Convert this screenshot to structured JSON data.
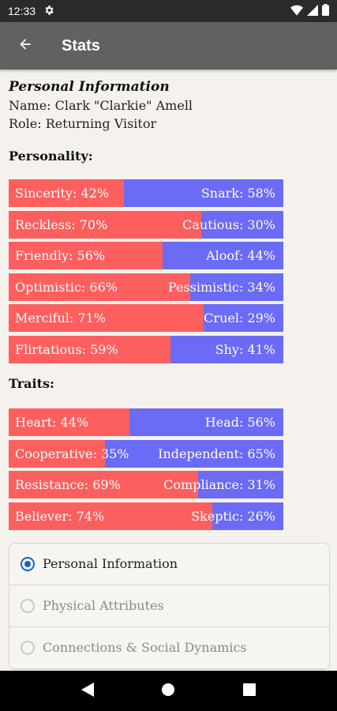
{
  "status_bar": {
    "time": "12:33",
    "icons": [
      "settings-gear",
      "wifi",
      "signal",
      "battery"
    ]
  },
  "app_bar": {
    "title": "Stats",
    "back_icon": "arrow-back"
  },
  "personal_info": {
    "title": "Personal Information",
    "name_line": "Name: Clark \"Clarkie\" Amell",
    "role_line": "Role: Returning Visitor"
  },
  "colors": {
    "left": "#fd5f5f",
    "right": "#6b6bf5",
    "selected": "#1565c0"
  },
  "personality": {
    "heading": "Personality:",
    "bars": [
      {
        "left": "Sincerity: 42%",
        "right": "Snark: 58%",
        "left_pct": 42
      },
      {
        "left": "Reckless: 70%",
        "right": "Cautious: 30%",
        "left_pct": 70
      },
      {
        "left": "Friendly: 56%",
        "right": "Aloof: 44%",
        "left_pct": 56
      },
      {
        "left": "Optimistic: 66%",
        "right": "Pessimistic: 34%",
        "left_pct": 66
      },
      {
        "left": "Merciful: 71%",
        "right": "Cruel: 29%",
        "left_pct": 71
      },
      {
        "left": "Flirtatious: 59%",
        "right": "Shy: 41%",
        "left_pct": 59
      }
    ]
  },
  "traits": {
    "heading": "Traits:",
    "bars": [
      {
        "left": "Heart: 44%",
        "right": "Head: 56%",
        "left_pct": 44
      },
      {
        "left": "Cooperative: 35%",
        "right": "Independent: 65%",
        "left_pct": 35
      },
      {
        "left": "Resistance: 69%",
        "right": "Compliance: 31%",
        "left_pct": 69
      },
      {
        "left": "Believer: 74%",
        "right": "Skeptic: 26%",
        "left_pct": 74
      }
    ]
  },
  "sections": [
    {
      "label": "Personal Information",
      "selected": true
    },
    {
      "label": "Physical Attributes",
      "selected": false
    },
    {
      "label": "Connections & Social Dynamics",
      "selected": false
    }
  ]
}
